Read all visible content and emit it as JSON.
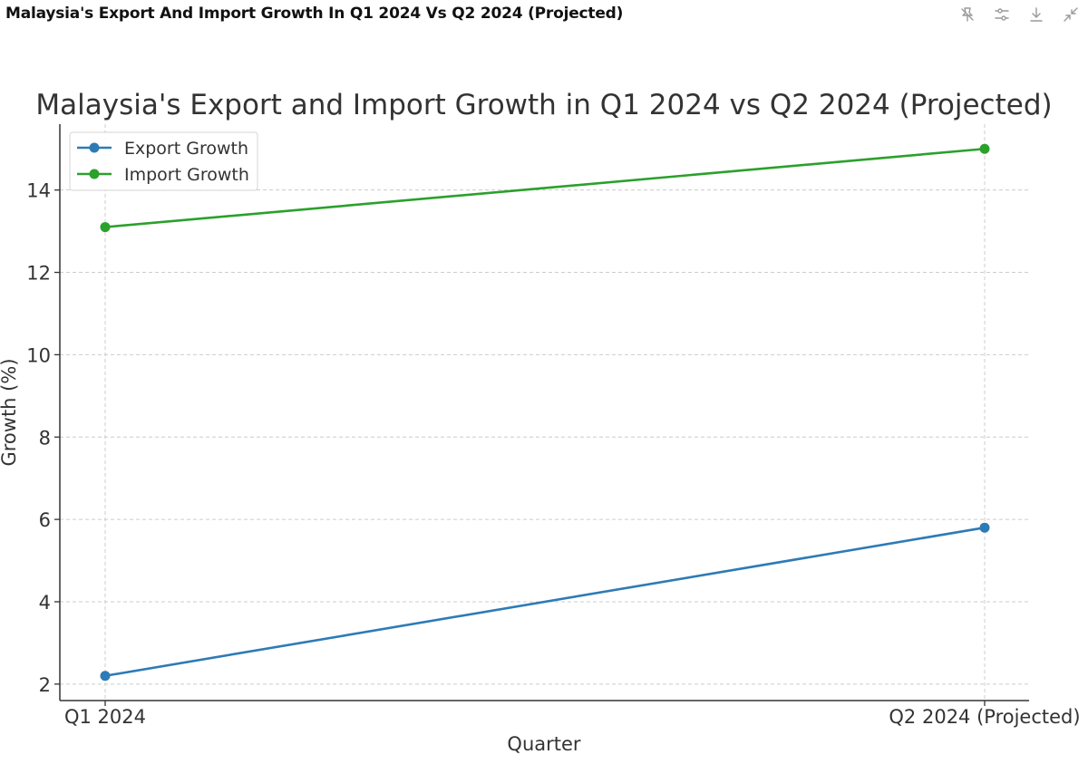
{
  "header": {
    "title": "Malaysia's Export And Import Growth In Q1 2024 Vs Q2 2024 (Projected)"
  },
  "toolbar": {
    "icons": [
      "pin-icon",
      "sliders-icon",
      "download-icon",
      "collapse-icon"
    ]
  },
  "chart_data": {
    "type": "line",
    "title": "Malaysia's Export and Import Growth in Q1 2024 vs Q2 2024 (Projected)",
    "xlabel": "Quarter",
    "ylabel": "Growth (%)",
    "categories": [
      "Q1 2024",
      "Q2 2024 (Projected)"
    ],
    "ylim": [
      1.6,
      15.6
    ],
    "yticks": [
      2,
      4,
      6,
      8,
      10,
      12,
      14
    ],
    "grid": true,
    "legend_position": "top-left",
    "series": [
      {
        "name": "Export Growth",
        "values": [
          2.2,
          5.8
        ],
        "color": "#2d7bb6"
      },
      {
        "name": "Import Growth",
        "values": [
          13.1,
          15.0
        ],
        "color": "#2ca02c"
      }
    ]
  }
}
